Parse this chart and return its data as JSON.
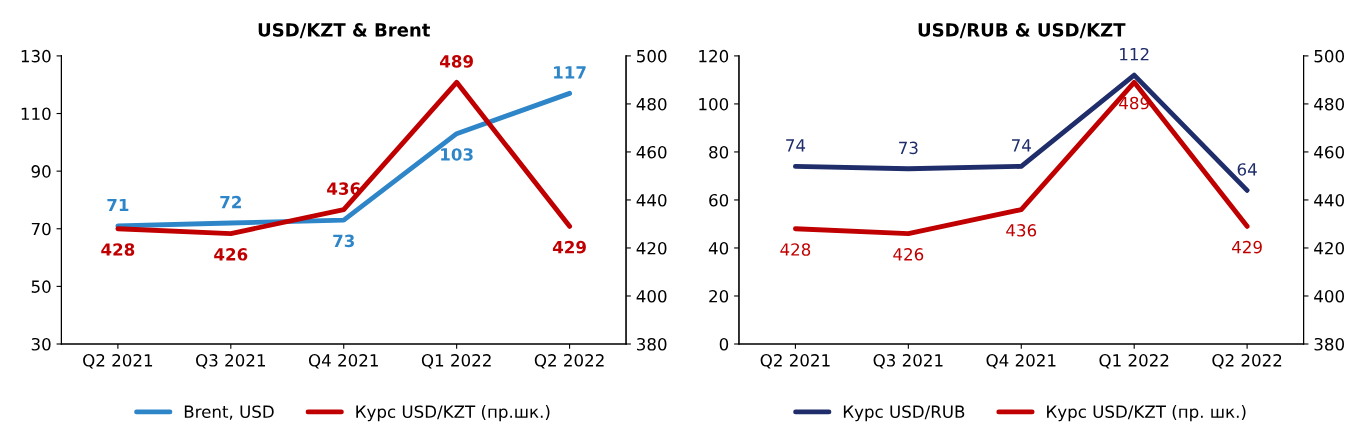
{
  "chart_data": [
    {
      "type": "line",
      "title": "USD/KZT & Brent",
      "categories": [
        "Q2 2021",
        "Q3 2021",
        "Q4 2021",
        "Q1 2022",
        "Q2 2022"
      ],
      "series": [
        {
          "name": "Brent, USD",
          "color": "#2e86c9",
          "values": [
            71,
            72,
            73,
            103,
            117
          ]
        },
        {
          "name": "Курс USD/KZT (пр.шк.)",
          "color": "#c00000",
          "values": [
            428,
            426,
            436,
            489,
            429
          ],
          "axis": "y2"
        }
      ],
      "ylim": [
        30,
        130
      ],
      "yticks": [
        30,
        50,
        70,
        90,
        110,
        130
      ],
      "y2lim": [
        380,
        500
      ],
      "y2ticks": [
        380,
        400,
        420,
        440,
        460,
        480,
        500
      ],
      "data_labels": true,
      "legend": "bottom",
      "grid": false,
      "marker": "none",
      "line_style": "solid"
    },
    {
      "type": "line",
      "title": "USD/RUB & USD/KZT",
      "categories": [
        "Q2 2021",
        "Q3 2021",
        "Q4 2021",
        "Q1 2022",
        "Q2 2022"
      ],
      "series": [
        {
          "name": "Курс USD/RUB",
          "color": "#1f2d6b",
          "values": [
            74,
            73,
            74,
            112,
            64
          ]
        },
        {
          "name": "Курс USD/KZT (пр. шк.)",
          "color": "#c00000",
          "values": [
            428,
            426,
            436,
            489,
            429
          ],
          "axis": "y2"
        }
      ],
      "ylim": [
        0,
        120
      ],
      "yticks": [
        0,
        20,
        40,
        60,
        80,
        100,
        120
      ],
      "y2lim": [
        380,
        500
      ],
      "y2ticks": [
        380,
        400,
        420,
        440,
        460,
        480,
        500
      ],
      "data_labels": true,
      "legend": "bottom",
      "grid": false,
      "marker": "none",
      "line_style": "solid"
    }
  ]
}
